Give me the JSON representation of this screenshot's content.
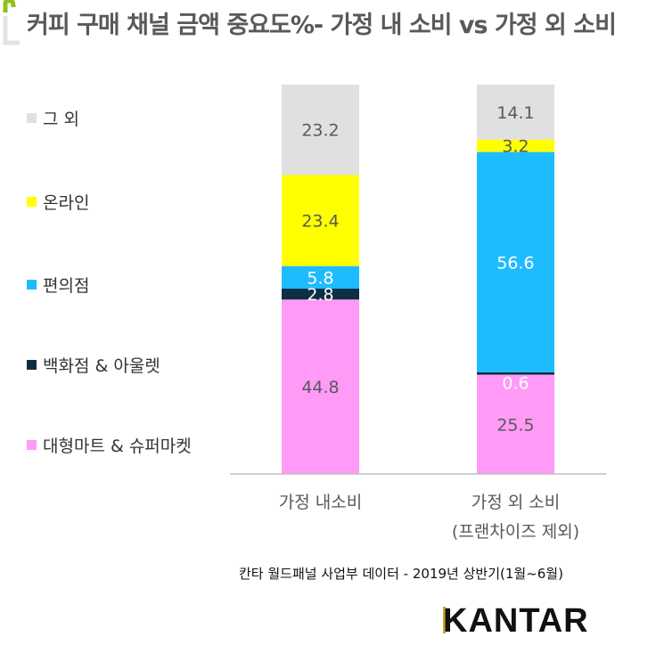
{
  "title": "커피 구매 채널 금액 중요도%- 가정 내 소비 vs 가정 외 소비",
  "source": "칸타 월드패널 사업부 데이터 - 2019년 상반기(1월~6월)",
  "logo": "KANTAR",
  "chart_data": {
    "type": "bar",
    "stacked": true,
    "normalized": true,
    "categories": [
      [
        "가정 내소비"
      ],
      [
        "가정 외 소비",
        "(프랜차이즈 제외)"
      ]
    ],
    "series": [
      {
        "name": "대형마트 & 슈퍼마켓",
        "color": "#FF9BF7",
        "label_color": "#595959",
        "values": [
          44.8,
          25.5
        ]
      },
      {
        "name": "백화점 & 아울렛",
        "color": "#0D2E45",
        "label_color": "#FFFFFF",
        "values": [
          2.8,
          0.6
        ]
      },
      {
        "name": "편의점",
        "color": "#1FBBFF",
        "label_color": "#FFFFFF",
        "values": [
          5.8,
          56.6
        ]
      },
      {
        "name": "온라인",
        "color": "#FFFF00",
        "label_color": "#595959",
        "values": [
          23.4,
          3.2
        ]
      },
      {
        "name": "그 외",
        "color": "#E0E0E0",
        "label_color": "#595959",
        "values": [
          23.2,
          14.1
        ]
      }
    ],
    "ylim": [
      0,
      100
    ],
    "legend_position": "left",
    "grid": false,
    "data_labels": true
  }
}
